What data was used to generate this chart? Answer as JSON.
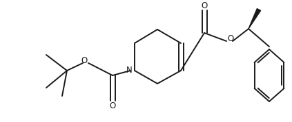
{
  "background_color": "#ffffff",
  "line_color": "#1a1a1a",
  "line_width": 1.4,
  "fig_width": 4.23,
  "fig_height": 1.78,
  "dpi": 100,
  "xlim": [
    0,
    423
  ],
  "ylim": [
    0,
    178
  ]
}
